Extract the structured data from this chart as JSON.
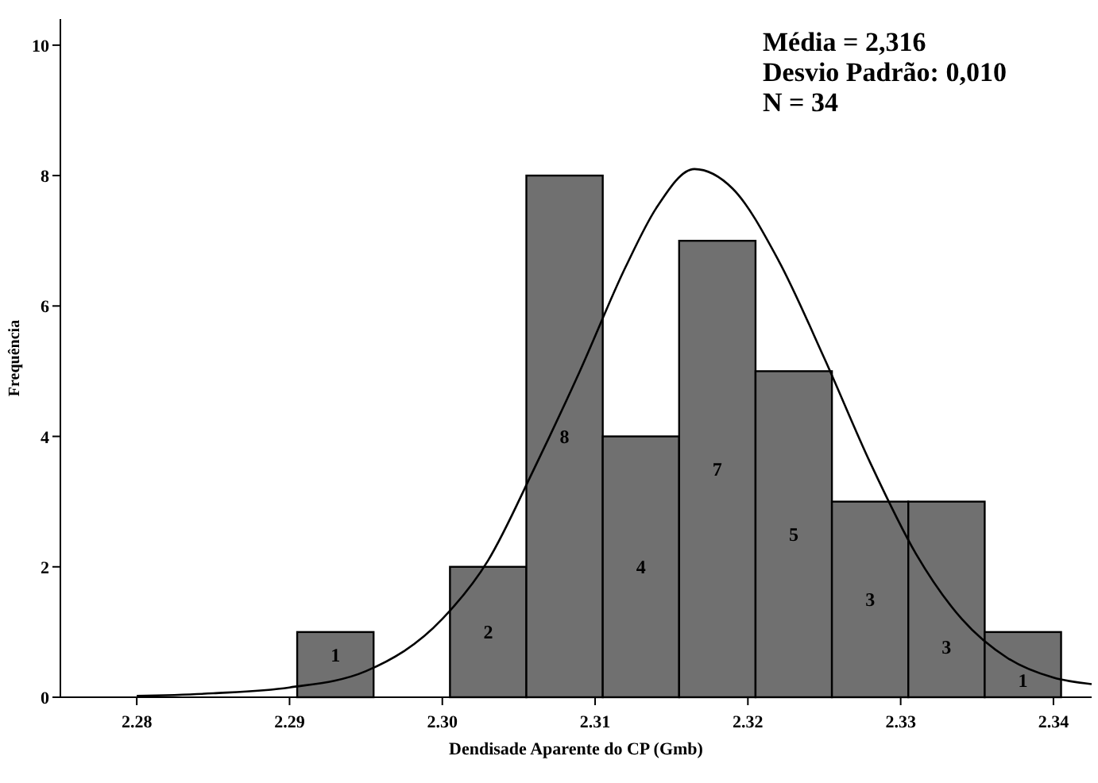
{
  "chart_data": {
    "type": "histogram",
    "xlabel": "Dendisade Aparente do CP (Gmb)",
    "ylabel": "Frequência",
    "bins": [
      2.2905,
      2.2955,
      2.3005,
      2.3055,
      2.3105,
      2.3155,
      2.3205,
      2.3255,
      2.3305,
      2.3355,
      2.3405
    ],
    "values": [
      1,
      0,
      2,
      8,
      4,
      7,
      5,
      3,
      3,
      1
    ],
    "value_labels": [
      "1",
      null,
      "2",
      "8",
      "4",
      "7",
      "5",
      "3",
      "3",
      "1"
    ],
    "color": "#707070",
    "series": [
      {
        "type": "line",
        "color": "#000000",
        "x": [
          2.28,
          2.285,
          2.29,
          2.295,
          2.3,
          2.303,
          2.306,
          2.309,
          2.312,
          2.314,
          2.3165,
          2.319,
          2.322,
          2.325,
          2.328,
          2.331,
          2.334,
          2.337,
          2.34,
          2.3425
        ],
        "values": [
          0.02,
          0.06,
          0.15,
          0.4,
          1.2,
          2.1,
          3.5,
          5.0,
          6.6,
          7.5,
          8.1,
          7.8,
          6.7,
          5.2,
          3.6,
          2.2,
          1.2,
          0.6,
          0.3,
          0.2
        ]
      }
    ],
    "xlim": [
      2.275,
      2.3425
    ],
    "ylim": [
      0,
      10.4
    ],
    "xticks": [
      {
        "value": 2.28,
        "label": "2.28"
      },
      {
        "value": 2.29,
        "label": "2.29"
      },
      {
        "value": 2.3,
        "label": "2.30"
      },
      {
        "value": 2.31,
        "label": "2.31"
      },
      {
        "value": 2.32,
        "label": "2.32"
      },
      {
        "value": 2.33,
        "label": "2.33"
      },
      {
        "value": 2.34,
        "label": "2.34"
      }
    ],
    "yticks": [
      0,
      2,
      4,
      6,
      8,
      10
    ],
    "annotations": [
      "Média = 2,316",
      "Desvio Padrão: 0,010",
      "N = 34"
    ],
    "marker": "none",
    "line_style": "solid"
  }
}
